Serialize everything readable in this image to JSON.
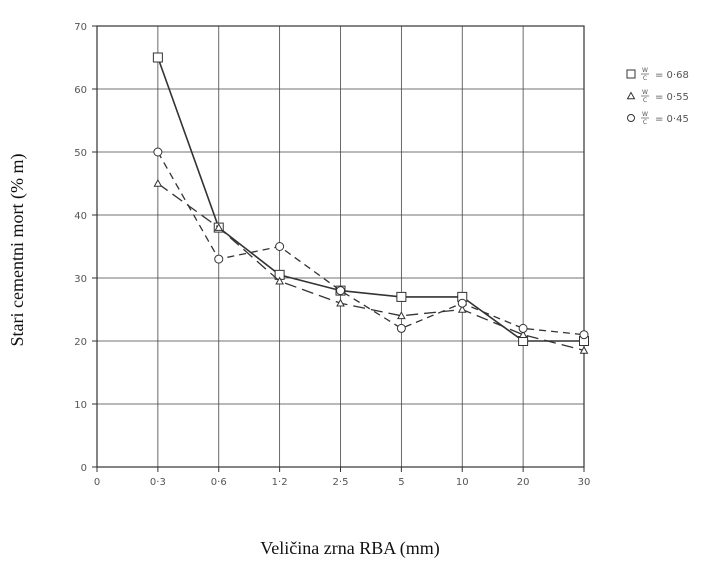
{
  "chart_data": {
    "type": "line",
    "title": "",
    "xlabel": "Veličina zrna RBA (mm)",
    "ylabel": "Stari cementni mort (% m)",
    "categories": [
      "0",
      "0·3",
      "0·6",
      "1·2",
      "2·5",
      "5",
      "10",
      "20",
      "30"
    ],
    "ylim": [
      0,
      70
    ],
    "yticks": [
      "0",
      "10",
      "20",
      "30",
      "40",
      "50",
      "60",
      "70"
    ],
    "grid": true,
    "legend_position": "right",
    "series": [
      {
        "name": "W/C = 0·68",
        "legend_ratio": "W/C",
        "legend_value": "= 0·68",
        "marker": "square",
        "dash": "solid",
        "values": [
          null,
          65,
          38,
          30.5,
          28,
          27,
          27,
          20,
          20
        ]
      },
      {
        "name": "W/C = 0·55",
        "legend_ratio": "W/C",
        "legend_value": "= 0·55",
        "marker": "triangle",
        "dash": "longdash",
        "values": [
          null,
          45,
          38,
          29.5,
          26,
          24,
          25,
          21,
          18.5
        ]
      },
      {
        "name": "W/C = 0·45",
        "legend_ratio": "W/C",
        "legend_value": "= 0·45",
        "marker": "circle",
        "dash": "dash",
        "values": [
          null,
          50,
          33,
          35,
          28,
          22,
          26,
          22,
          21
        ]
      }
    ]
  }
}
